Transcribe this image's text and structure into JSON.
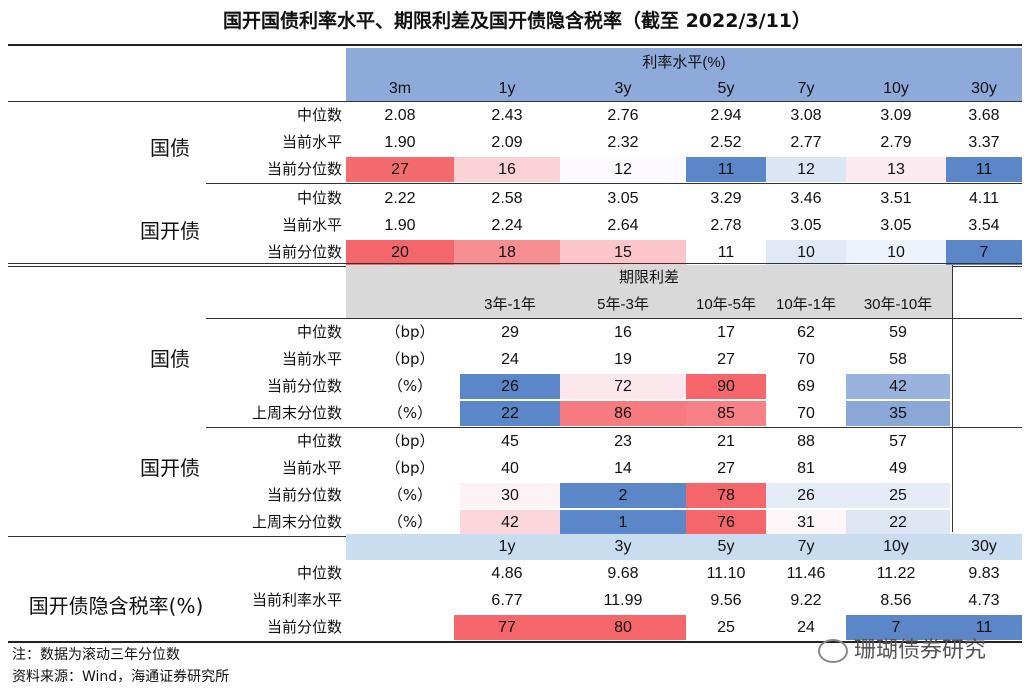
{
  "title": "国开国债利率水平、期限利差及国开债隐含税率（截至 2022/3/11）",
  "sec1": {
    "header": "利率水平(%)",
    "cols": [
      "3m",
      "1y",
      "3y",
      "5y",
      "7y",
      "10y",
      "30y"
    ],
    "groups": [
      {
        "name": "国债",
        "rows": [
          {
            "label": "中位数",
            "values": [
              "2.08",
              "2.43",
              "2.76",
              "2.94",
              "3.08",
              "3.09",
              "3.68"
            ],
            "colors": []
          },
          {
            "label": "当前水平",
            "values": [
              "1.90",
              "2.09",
              "2.32",
              "2.52",
              "2.77",
              "2.79",
              "3.37"
            ],
            "colors": []
          },
          {
            "label": "当前分位数",
            "values": [
              "27",
              "16",
              "12",
              "11",
              "12",
              "13",
              "11"
            ],
            "colors": [
              "#f46b6f",
              "#fbd3d7",
              "#fdfaff",
              "#5b86c8",
              "#dce5f4",
              "#fbeaf0",
              "#5b86c8"
            ]
          }
        ]
      },
      {
        "name": "国开债",
        "rows": [
          {
            "label": "中位数",
            "values": [
              "2.22",
              "2.58",
              "3.05",
              "3.29",
              "3.46",
              "3.51",
              "4.11"
            ],
            "colors": []
          },
          {
            "label": "当前水平",
            "values": [
              "1.90",
              "2.24",
              "2.64",
              "2.78",
              "3.05",
              "3.05",
              "3.54"
            ],
            "colors": []
          },
          {
            "label": "当前分位数",
            "values": [
              "20",
              "18",
              "15",
              "11",
              "10",
              "10",
              "7"
            ],
            "colors": [
              "#f4666a",
              "#f78e92",
              "#fbc5ca",
              "#ffffff",
              "#e2e9f6",
              "#eef2fa",
              "#5b86c8"
            ]
          }
        ]
      }
    ]
  },
  "sec2": {
    "header": "期限利差",
    "cols": [
      "3年-1年",
      "5年-3年",
      "10年-5年",
      "10年-1年",
      "30年-10年"
    ],
    "groups": [
      {
        "name": "国债",
        "rows": [
          {
            "label": "中位数",
            "unit": "（bp）",
            "values": [
              "29",
              "16",
              "17",
              "62",
              "59"
            ],
            "colors": []
          },
          {
            "label": "当前水平",
            "unit": "（bp）",
            "values": [
              "24",
              "19",
              "27",
              "70",
              "58"
            ],
            "colors": []
          },
          {
            "label": "当前分位数",
            "unit": "（%）",
            "values": [
              "26",
              "72",
              "90",
              "69",
              "42"
            ],
            "colors": [
              "#5b86c8",
              "#fce8ec",
              "#f4666a",
              "#ffffff",
              "#9ab3de"
            ]
          },
          {
            "label": "上周末分位数",
            "unit": "（%）",
            "values": [
              "22",
              "86",
              "85",
              "70",
              "35"
            ],
            "colors": [
              "#5b86c8",
              "#f67b80",
              "#f78186",
              "#ffffff",
              "#8aa7d8"
            ]
          }
        ]
      },
      {
        "name": "国开债",
        "rows": [
          {
            "label": "中位数",
            "unit": "（bp）",
            "values": [
              "45",
              "23",
              "21",
              "88",
              "57"
            ],
            "colors": []
          },
          {
            "label": "当前水平",
            "unit": "（bp）",
            "values": [
              "40",
              "14",
              "27",
              "81",
              "49"
            ],
            "colors": []
          },
          {
            "label": "当前分位数",
            "unit": "（%）",
            "values": [
              "30",
              "2",
              "78",
              "26",
              "25"
            ],
            "colors": [
              "#fdf2f5",
              "#5b86c8",
              "#f4666a",
              "#e6ecf7",
              "#e6ecf7"
            ]
          },
          {
            "label": "上周末分位数",
            "unit": "（%）",
            "values": [
              "42",
              "1",
              "76",
              "31",
              "22"
            ],
            "colors": [
              "#fbd7dc",
              "#5b86c8",
              "#f4666a",
              "#fdf6f8",
              "#dee6f4"
            ]
          }
        ]
      }
    ]
  },
  "sec3": {
    "name": "国开债隐含税率(%)",
    "cols": [
      "1y",
      "3y",
      "5y",
      "7y",
      "10y",
      "30y"
    ],
    "rows": [
      {
        "label": "中位数",
        "values": [
          "4.86",
          "9.68",
          "11.10",
          "11.46",
          "11.22",
          "9.83"
        ],
        "colors": []
      },
      {
        "label": "当前利率水平",
        "values": [
          "6.77",
          "11.99",
          "9.56",
          "9.22",
          "8.56",
          "4.73"
        ],
        "colors": []
      },
      {
        "label": "当前分位数",
        "values": [
          "77",
          "80",
          "25",
          "24",
          "7",
          "11"
        ],
        "colors": [
          "#f4666a",
          "#f4666a",
          "#ffffff",
          "#ffffff",
          "#5b86c8",
          "#5b86c8"
        ]
      }
    ]
  },
  "notes": {
    "note1": "注：数据为滚动三年分位数",
    "note2": "资料来源：Wind，海通证券研究所"
  },
  "watermark": "珊瑚债券研究"
}
